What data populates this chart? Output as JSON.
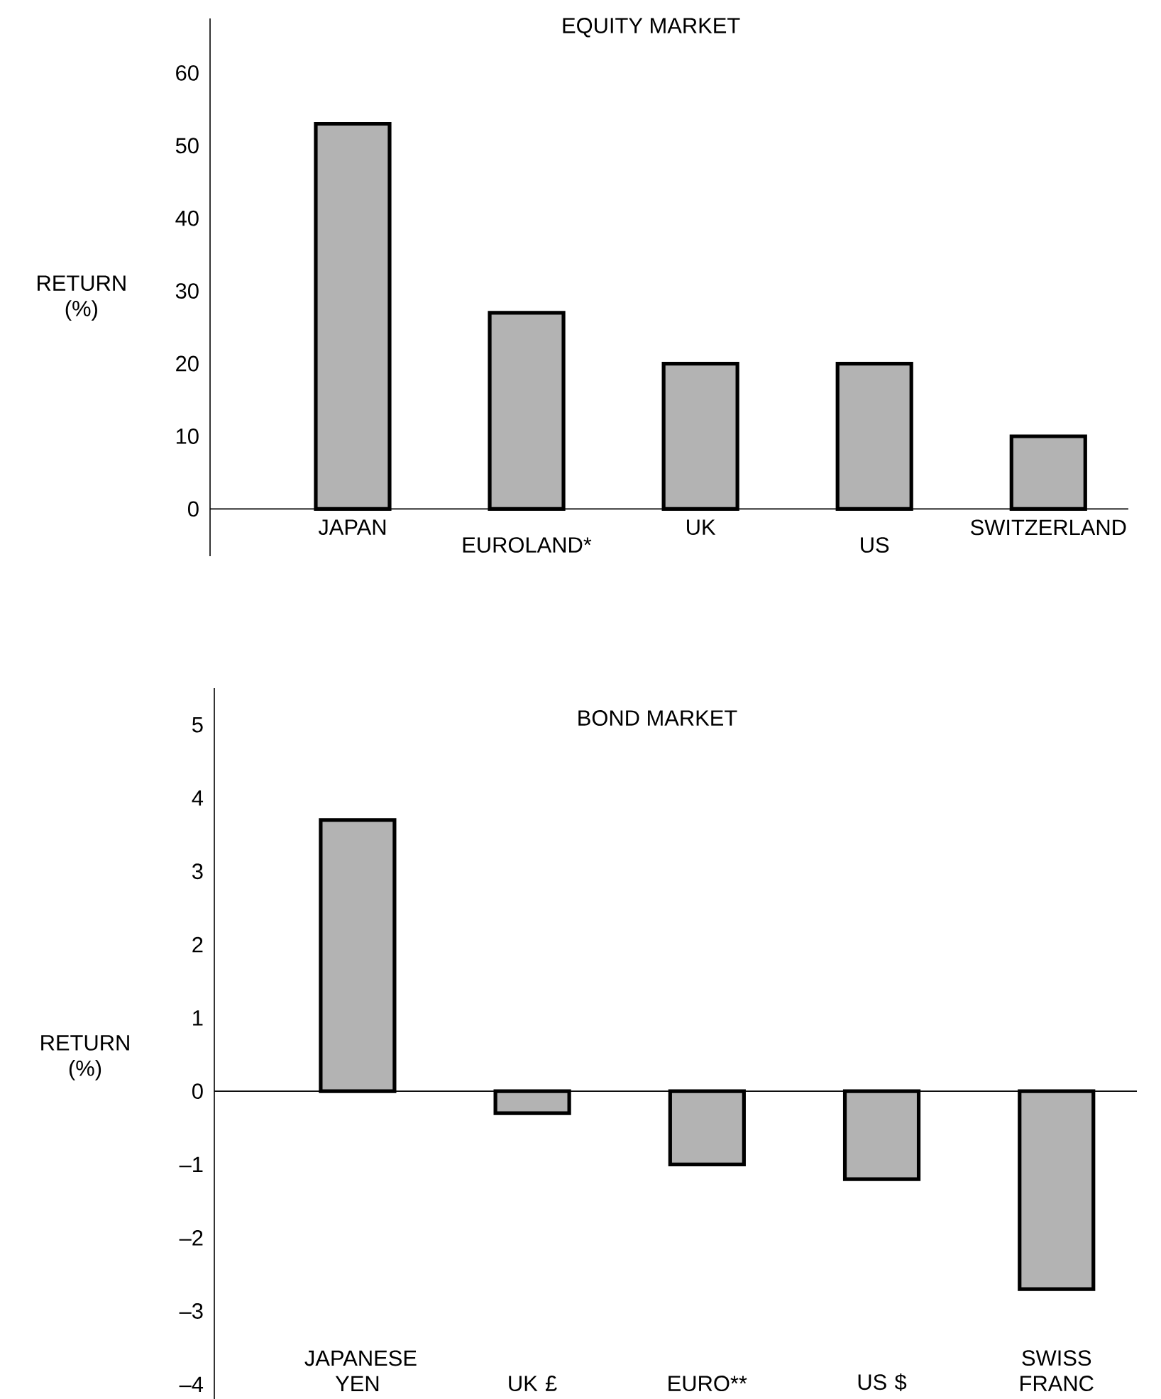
{
  "chart_data": [
    {
      "type": "bar",
      "title": "EQUITY MARKET",
      "ylabel": "RETURN (%)",
      "categories": [
        "JAPAN",
        "EUROLAND*",
        "UK",
        "US",
        "SWITZERLAND"
      ],
      "values": [
        53,
        27,
        20,
        20,
        10
      ],
      "color": "#b3b3b3",
      "ylim": [
        -6.5,
        67.5
      ],
      "yticks": [
        0,
        10,
        20,
        30,
        40,
        50,
        60
      ]
    },
    {
      "type": "bar",
      "title": "BOND MARKET",
      "ylabel": "RETURN (%)",
      "categories": [
        "JAPANESE YEN",
        "UK £",
        "EURO**",
        "US $",
        "SWISS FRANC"
      ],
      "values": [
        3.7,
        -0.3,
        -1.0,
        -1.2,
        -2.7
      ],
      "color": "#b3b3b3",
      "ylim": [
        -4.2,
        5.5
      ],
      "yticks": [
        {
          "value": -4,
          "label": "–4"
        },
        {
          "value": -3,
          "label": "–3"
        },
        {
          "value": -2,
          "label": "–2"
        },
        {
          "value": -1,
          "label": "–1"
        },
        0,
        1,
        2,
        3,
        4,
        5
      ]
    }
  ]
}
